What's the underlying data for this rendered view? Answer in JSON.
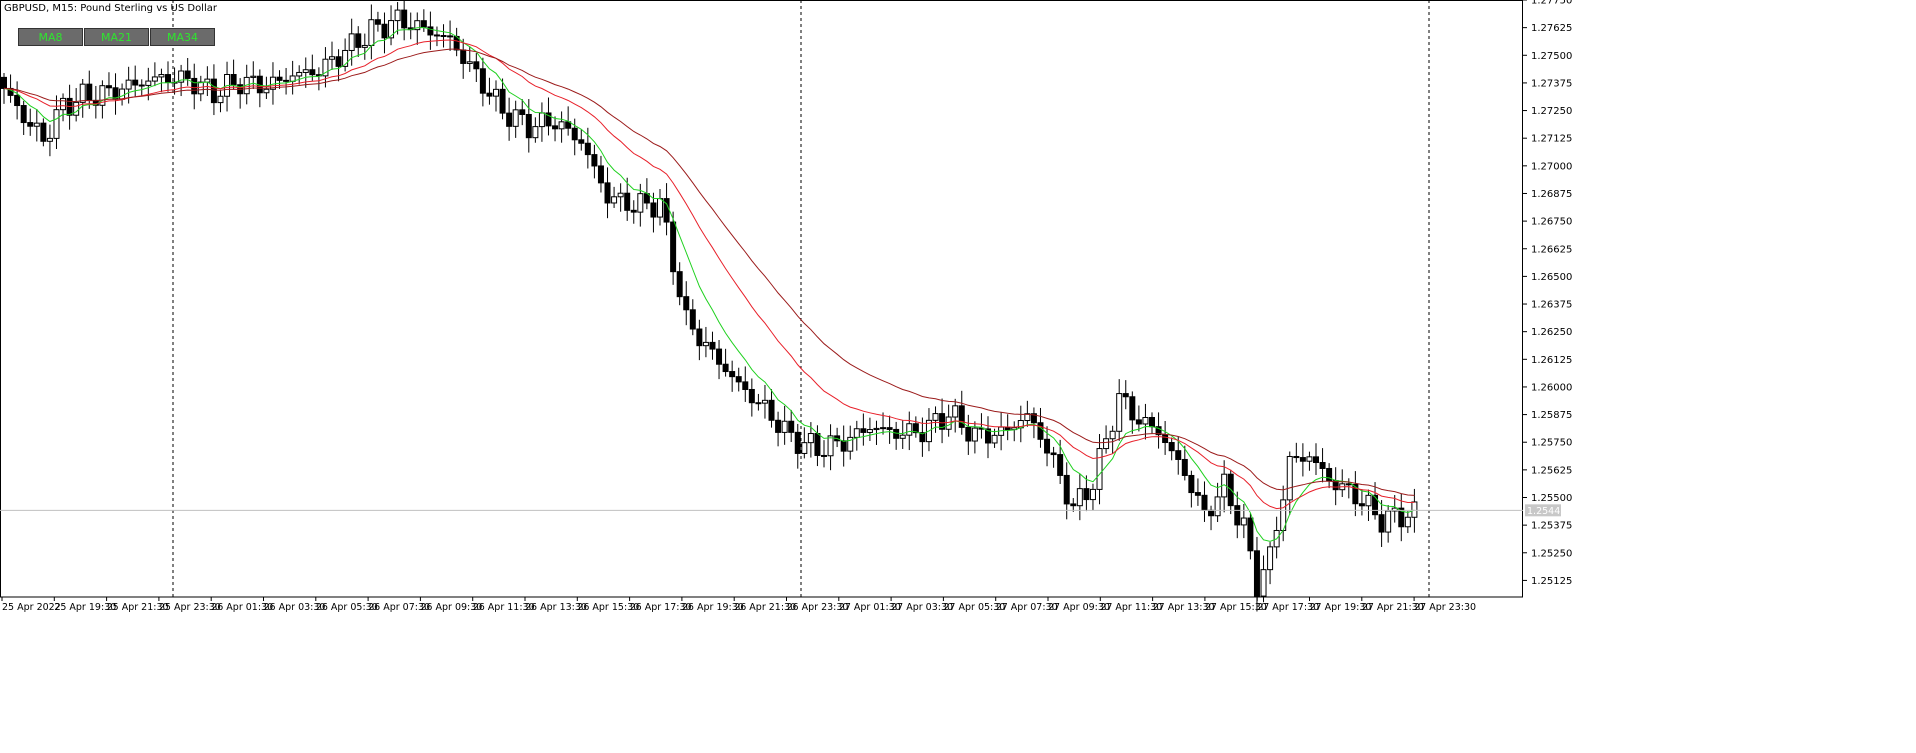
{
  "header": {
    "title": "GBPUSD, M15:  Pound Sterling vs US Dollar"
  },
  "toolbar": {
    "buttons": [
      "MA8",
      "MA21",
      "MA34"
    ]
  },
  "colors": {
    "bull_fill": "#ffffff",
    "bear_fill": "#000000",
    "ma_fast": "#1fd11f",
    "ma_mid": "#e8202a",
    "ma_slow": "#9b1b1b",
    "grid": "#000000",
    "price_line": "#c0c0c0",
    "current_price_bg": "#c8c8c8"
  },
  "chart_data": {
    "type": "candlestick",
    "symbol": "GBPUSD",
    "timeframe": "M15",
    "ylim": [
      1.2505,
      1.2775
    ],
    "y_ticks": [
      "1.27750",
      "1.27625",
      "1.27500",
      "1.27375",
      "1.27250",
      "1.27125",
      "1.27000",
      "1.26875",
      "1.26750",
      "1.26625",
      "1.26500",
      "1.26375",
      "1.26250",
      "1.26125",
      "1.26000",
      "1.25875",
      "1.25750",
      "1.25625",
      "1.25500",
      "1.25375",
      "1.25250",
      "1.25125"
    ],
    "x_ticks": [
      "25 Apr 2022",
      "25 Apr 19:30",
      "25 Apr 21:30",
      "25 Apr 23:30",
      "26 Apr 01:30",
      "26 Apr 03:30",
      "26 Apr 05:30",
      "26 Apr 07:30",
      "26 Apr 09:30",
      "26 Apr 11:30",
      "26 Apr 13:30",
      "26 Apr 15:30",
      "26 Apr 17:30",
      "26 Apr 19:30",
      "26 Apr 21:30",
      "26 Apr 23:30",
      "27 Apr 01:30",
      "27 Apr 03:30",
      "27 Apr 05:30",
      "27 Apr 07:30",
      "27 Apr 09:30",
      "27 Apr 11:30",
      "27 Apr 13:30",
      "27 Apr 15:30",
      "27 Apr 17:30",
      "27 Apr 19:30",
      "27 Apr 21:30",
      "27 Apr 23:30"
    ],
    "day_separators": [
      "25 Apr 23:30",
      "26 Apr 23:30",
      "27 Apr 23:30"
    ],
    "current_price": 1.25442,
    "current_price_label": "1.25442",
    "bar_count": 216,
    "close_anchors": [
      [
        0,
        1.2735
      ],
      [
        3,
        1.2722
      ],
      [
        6,
        1.2712
      ],
      [
        9,
        1.2727
      ],
      [
        12,
        1.2731
      ],
      [
        16,
        1.2733
      ],
      [
        20,
        1.2737
      ],
      [
        24,
        1.274
      ],
      [
        28,
        1.2739
      ],
      [
        32,
        1.2733
      ],
      [
        36,
        1.2738
      ],
      [
        40,
        1.2736
      ],
      [
        44,
        1.2741
      ],
      [
        48,
        1.2743
      ],
      [
        52,
        1.2752
      ],
      [
        56,
        1.2761
      ],
      [
        60,
        1.2766
      ],
      [
        64,
        1.2762
      ],
      [
        68,
        1.2757
      ],
      [
        72,
        1.2741
      ],
      [
        76,
        1.2725
      ],
      [
        80,
        1.2718
      ],
      [
        84,
        1.272
      ],
      [
        88,
        1.2711
      ],
      [
        92,
        1.2686
      ],
      [
        96,
        1.2682
      ],
      [
        100,
        1.2683
      ],
      [
        104,
        1.263
      ],
      [
        108,
        1.2615
      ],
      [
        112,
        1.2601
      ],
      [
        116,
        1.259
      ],
      [
        120,
        1.2577
      ],
      [
        124,
        1.2572
      ],
      [
        128,
        1.2575
      ],
      [
        132,
        1.2582
      ],
      [
        136,
        1.2579
      ],
      [
        140,
        1.258
      ],
      [
        144,
        1.2588
      ],
      [
        148,
        1.2578
      ],
      [
        152,
        1.2579
      ],
      [
        156,
        1.2587
      ],
      [
        158,
        1.2578
      ],
      [
        160,
        1.2566
      ],
      [
        163,
        1.2545
      ],
      [
        166,
        1.2557
      ],
      [
        170,
        1.2595
      ],
      [
        173,
        1.2585
      ],
      [
        176,
        1.258
      ],
      [
        180,
        1.2561
      ],
      [
        183,
        1.2542
      ],
      [
        186,
        1.2555
      ],
      [
        189,
        1.2536
      ],
      [
        191,
        1.2511
      ],
      [
        193,
        1.2523
      ],
      [
        196,
        1.2566
      ],
      [
        199,
        1.2569
      ],
      [
        202,
        1.2558
      ],
      [
        206,
        1.2551
      ],
      [
        210,
        1.254
      ],
      [
        215,
        1.2543
      ]
    ]
  }
}
